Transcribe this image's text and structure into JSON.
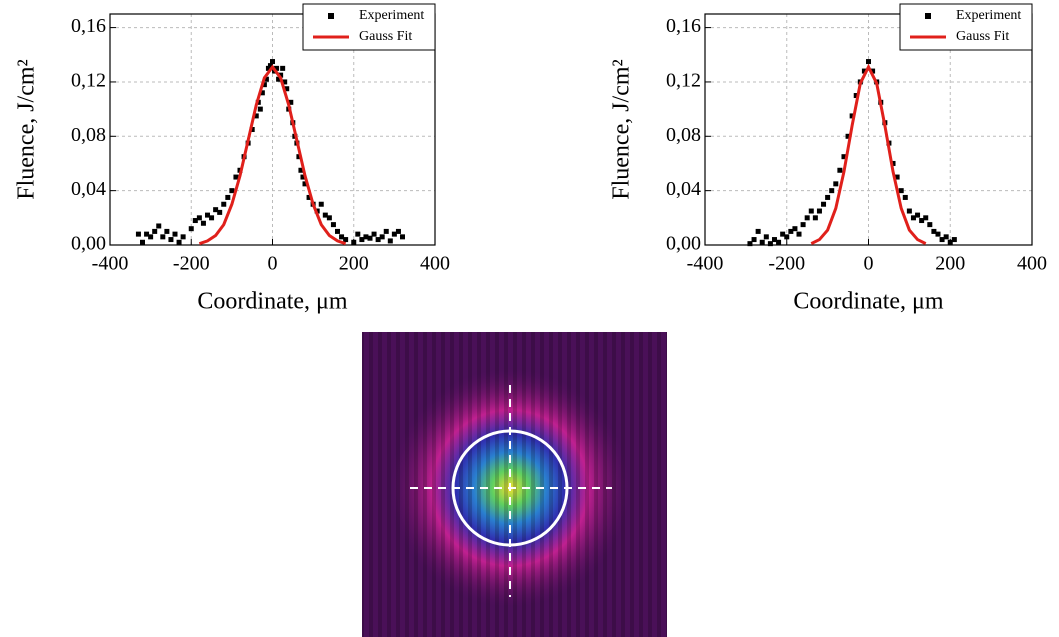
{
  "chart_data": [
    {
      "type": "scatter",
      "xlabel": "Coordinate, μm",
      "ylabel": "Fluence, J/cm²",
      "xlim": [
        -400,
        400
      ],
      "ylim": [
        0,
        0.17
      ],
      "xticks": [
        -400,
        -200,
        0,
        200,
        400
      ],
      "yticks": [
        {
          "value": 0,
          "label": "0,00"
        },
        {
          "value": 0.04,
          "label": "0,04"
        },
        {
          "value": 0.08,
          "label": "0,08"
        },
        {
          "value": 0.12,
          "label": "0,12"
        },
        {
          "value": 0.16,
          "label": "0,16"
        }
      ],
      "grid": true,
      "legend": "top-right",
      "series": [
        {
          "name": "Experiment",
          "color": "#000000",
          "mode": "markers",
          "x": [
            -330,
            -320,
            -310,
            -300,
            -290,
            -280,
            -270,
            -260,
            -250,
            -240,
            -230,
            -220,
            -200,
            -190,
            -180,
            -170,
            -160,
            -150,
            -140,
            -130,
            -120,
            -110,
            -100,
            -90,
            -80,
            -70,
            -60,
            -50,
            -40,
            -35,
            -30,
            -25,
            -20,
            -15,
            -10,
            -5,
            0,
            5,
            10,
            15,
            20,
            25,
            30,
            35,
            40,
            45,
            50,
            55,
            60,
            65,
            70,
            75,
            80,
            90,
            100,
            110,
            120,
            130,
            140,
            150,
            160,
            170,
            180,
            200,
            210,
            220,
            230,
            240,
            250,
            260,
            270,
            280,
            290,
            300,
            310,
            320
          ],
          "y": [
            0.008,
            0.002,
            0.008,
            0.006,
            0.01,
            0.014,
            0.006,
            0.01,
            0.004,
            0.008,
            0.002,
            0.006,
            0.012,
            0.018,
            0.02,
            0.016,
            0.022,
            0.02,
            0.026,
            0.024,
            0.03,
            0.035,
            0.04,
            0.05,
            0.055,
            0.065,
            0.075,
            0.085,
            0.095,
            0.105,
            0.1,
            0.112,
            0.118,
            0.122,
            0.13,
            0.132,
            0.135,
            0.128,
            0.13,
            0.122,
            0.125,
            0.13,
            0.12,
            0.115,
            0.1,
            0.105,
            0.09,
            0.08,
            0.075,
            0.065,
            0.055,
            0.05,
            0.045,
            0.035,
            0.03,
            0.025,
            0.03,
            0.022,
            0.02,
            0.015,
            0.01,
            0.006,
            0.004,
            0.002,
            0.008,
            0.004,
            0.006,
            0.005,
            0.008,
            0.004,
            0.006,
            0.01,
            0.003,
            0.008,
            0.01,
            0.006
          ]
        },
        {
          "name": "Gauss Fit",
          "color": "#e0201b",
          "mode": "line",
          "x": [
            -180,
            -160,
            -140,
            -120,
            -100,
            -80,
            -60,
            -40,
            -20,
            0,
            20,
            40,
            60,
            80,
            100,
            120,
            140,
            160,
            180
          ],
          "y": [
            0.001,
            0.003,
            0.007,
            0.015,
            0.03,
            0.051,
            0.077,
            0.103,
            0.123,
            0.131,
            0.123,
            0.103,
            0.077,
            0.051,
            0.03,
            0.015,
            0.007,
            0.003,
            0.001
          ]
        }
      ]
    },
    {
      "type": "scatter",
      "xlabel": "Coordinate, μm",
      "ylabel": "Fluence, J/cm²",
      "xlim": [
        -400,
        400
      ],
      "ylim": [
        0,
        0.17
      ],
      "xticks": [
        -400,
        -200,
        0,
        200,
        400
      ],
      "yticks": [
        {
          "value": 0,
          "label": "0,00"
        },
        {
          "value": 0.04,
          "label": "0,04"
        },
        {
          "value": 0.08,
          "label": "0,08"
        },
        {
          "value": 0.12,
          "label": "0,12"
        },
        {
          "value": 0.16,
          "label": "0,16"
        }
      ],
      "grid": true,
      "legend": "top-right",
      "series": [
        {
          "name": "Experiment",
          "color": "#000000",
          "mode": "markers",
          "x": [
            -290,
            -280,
            -270,
            -260,
            -250,
            -240,
            -230,
            -220,
            -210,
            -200,
            -190,
            -180,
            -170,
            -160,
            -150,
            -140,
            -130,
            -120,
            -110,
            -100,
            -90,
            -80,
            -70,
            -60,
            -50,
            -40,
            -30,
            -20,
            -10,
            0,
            10,
            20,
            30,
            40,
            50,
            60,
            70,
            80,
            90,
            100,
            110,
            120,
            130,
            140,
            150,
            160,
            170,
            180,
            190,
            200,
            210
          ],
          "y": [
            0.001,
            0.004,
            0.01,
            0.002,
            0.006,
            0.001,
            0.004,
            0.002,
            0.008,
            0.006,
            0.01,
            0.012,
            0.008,
            0.015,
            0.02,
            0.025,
            0.02,
            0.025,
            0.03,
            0.035,
            0.04,
            0.045,
            0.055,
            0.065,
            0.08,
            0.095,
            0.11,
            0.12,
            0.128,
            0.135,
            0.128,
            0.12,
            0.105,
            0.09,
            0.075,
            0.06,
            0.05,
            0.04,
            0.035,
            0.025,
            0.02,
            0.022,
            0.018,
            0.02,
            0.015,
            0.01,
            0.008,
            0.004,
            0.006,
            0.002,
            0.004
          ]
        },
        {
          "name": "Gauss Fit",
          "color": "#e0201b",
          "mode": "line",
          "x": [
            -140,
            -120,
            -100,
            -80,
            -60,
            -40,
            -20,
            0,
            20,
            40,
            60,
            80,
            100,
            120,
            140
          ],
          "y": [
            0.001,
            0.004,
            0.011,
            0.027,
            0.054,
            0.088,
            0.119,
            0.131,
            0.119,
            0.088,
            0.054,
            0.027,
            0.011,
            0.004,
            0.001
          ]
        }
      ]
    }
  ]
}
